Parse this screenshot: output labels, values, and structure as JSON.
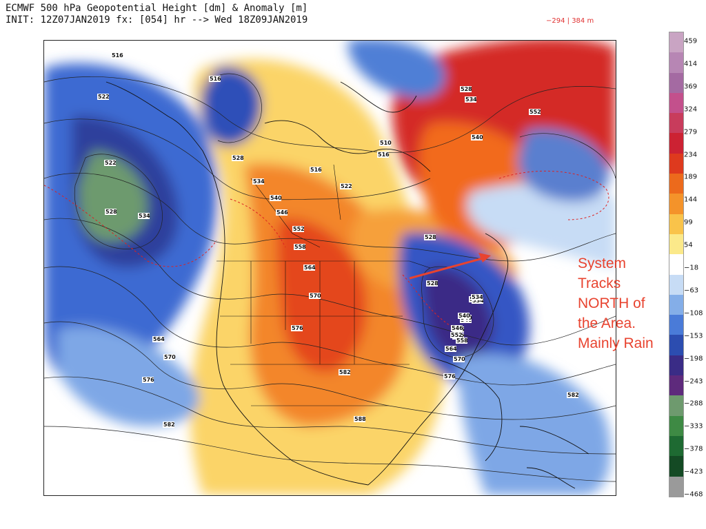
{
  "header": {
    "line1": "ECMWF 500 hPa Geopotential Height [dm] & Anomaly [m]",
    "line2": "INIT: 12Z07JAN2019 fx: [054] hr --> Wed 18Z09JAN2019",
    "range": "−294 | 384 m"
  },
  "annotation": {
    "lines": [
      "System",
      "Tracks",
      "NORTH of",
      "the Area.",
      "Mainly Rain"
    ],
    "color": "#e8432f"
  },
  "colorbar": {
    "labels": [
      "459",
      "414",
      "369",
      "324",
      "279",
      "234",
      "189",
      "144",
      "99",
      "54",
      "−18",
      "−63",
      "−108",
      "−153",
      "−198",
      "−243",
      "−288",
      "−333",
      "−378",
      "−423",
      "−468"
    ],
    "colors": [
      "#c9a4c3",
      "#b786b4",
      "#a46aa2",
      "#c3508c",
      "#c83c5c",
      "#cc2233",
      "#de3a1e",
      "#ec6a1c",
      "#f4932a",
      "#f9c34a",
      "#fbe98a",
      "#ffffff",
      "#c7dcf5",
      "#84aee8",
      "#4a7bd8",
      "#2c4db0",
      "#3a2c86",
      "#5e2a7c",
      "#6e9a6e",
      "#3e8a44",
      "#1e6a32",
      "#144a24",
      "#9a9a9a"
    ]
  },
  "contour_labels": [
    {
      "text": "516"
    },
    {
      "text": "522"
    },
    {
      "text": "522"
    },
    {
      "text": "528"
    },
    {
      "text": "534"
    },
    {
      "text": "516"
    },
    {
      "text": "528"
    },
    {
      "text": "534"
    },
    {
      "text": "516"
    },
    {
      "text": "522"
    },
    {
      "text": "540"
    },
    {
      "text": "546"
    },
    {
      "text": "552"
    },
    {
      "text": "558"
    },
    {
      "text": "564"
    },
    {
      "text": "570"
    },
    {
      "text": "576"
    },
    {
      "text": "582"
    },
    {
      "text": "588"
    },
    {
      "text": "564"
    },
    {
      "text": "570"
    },
    {
      "text": "576"
    },
    {
      "text": "582"
    },
    {
      "text": "510"
    },
    {
      "text": "516"
    },
    {
      "text": "528"
    },
    {
      "text": "534"
    },
    {
      "text": "540"
    },
    {
      "text": "546"
    },
    {
      "text": "552"
    },
    {
      "text": "540"
    },
    {
      "text": "534"
    },
    {
      "text": "552"
    },
    {
      "text": "528"
    },
    {
      "text": "534"
    },
    {
      "text": "540"
    },
    {
      "text": "528"
    },
    {
      "text": "534"
    },
    {
      "text": "540"
    },
    {
      "text": "546"
    },
    {
      "text": "552"
    },
    {
      "text": "558"
    },
    {
      "text": "564"
    },
    {
      "text": "570"
    },
    {
      "text": "576"
    },
    {
      "text": "582"
    },
    {
      "text": "582"
    }
  ]
}
